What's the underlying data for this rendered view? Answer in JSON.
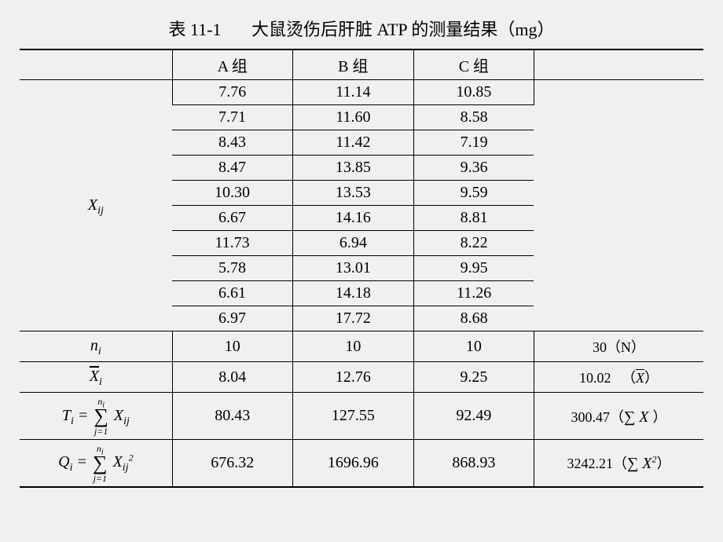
{
  "title_left": "表 11-1",
  "title_right": "大鼠烫伤后肝脏 ATP 的测量结果（mg）",
  "header": {
    "a": "A 组",
    "b": "B 组",
    "c": "C 组"
  },
  "row_label_Xij": "X_ij",
  "data": {
    "a": [
      "7.76",
      "7.71",
      "8.43",
      "8.47",
      "10.30",
      "6.67",
      "11.73",
      "5.78",
      "6.61",
      "6.97"
    ],
    "b": [
      "11.14",
      "11.60",
      "11.42",
      "13.85",
      "13.53",
      "14.16",
      "6.94",
      "13.01",
      "14.18",
      "17.72"
    ],
    "c": [
      "10.85",
      "8.58",
      "7.19",
      "9.36",
      "9.59",
      "8.81",
      "8.22",
      "9.95",
      "11.26",
      "8.68"
    ]
  },
  "stats": {
    "n_label": "n_i",
    "n": {
      "a": "10",
      "b": "10",
      "c": "10",
      "total": "30（N）"
    },
    "mean_label": "X̄_i",
    "mean": {
      "a": "8.04",
      "b": "12.76",
      "c": "9.25",
      "total_prefix": "10.02",
      "total_sym": "（X̄）"
    },
    "T_label": "T_i",
    "T": {
      "a": "80.43",
      "b": "127.55",
      "c": "92.49",
      "total": "300.47"
    },
    "T_total_sym": "（∑ X ）",
    "Q_label": "Q_i",
    "Q": {
      "a": "676.32",
      "b": "1696.96",
      "c": "868.93",
      "total": "3242.21"
    },
    "Q_total_sym": "（∑ X²）"
  }
}
